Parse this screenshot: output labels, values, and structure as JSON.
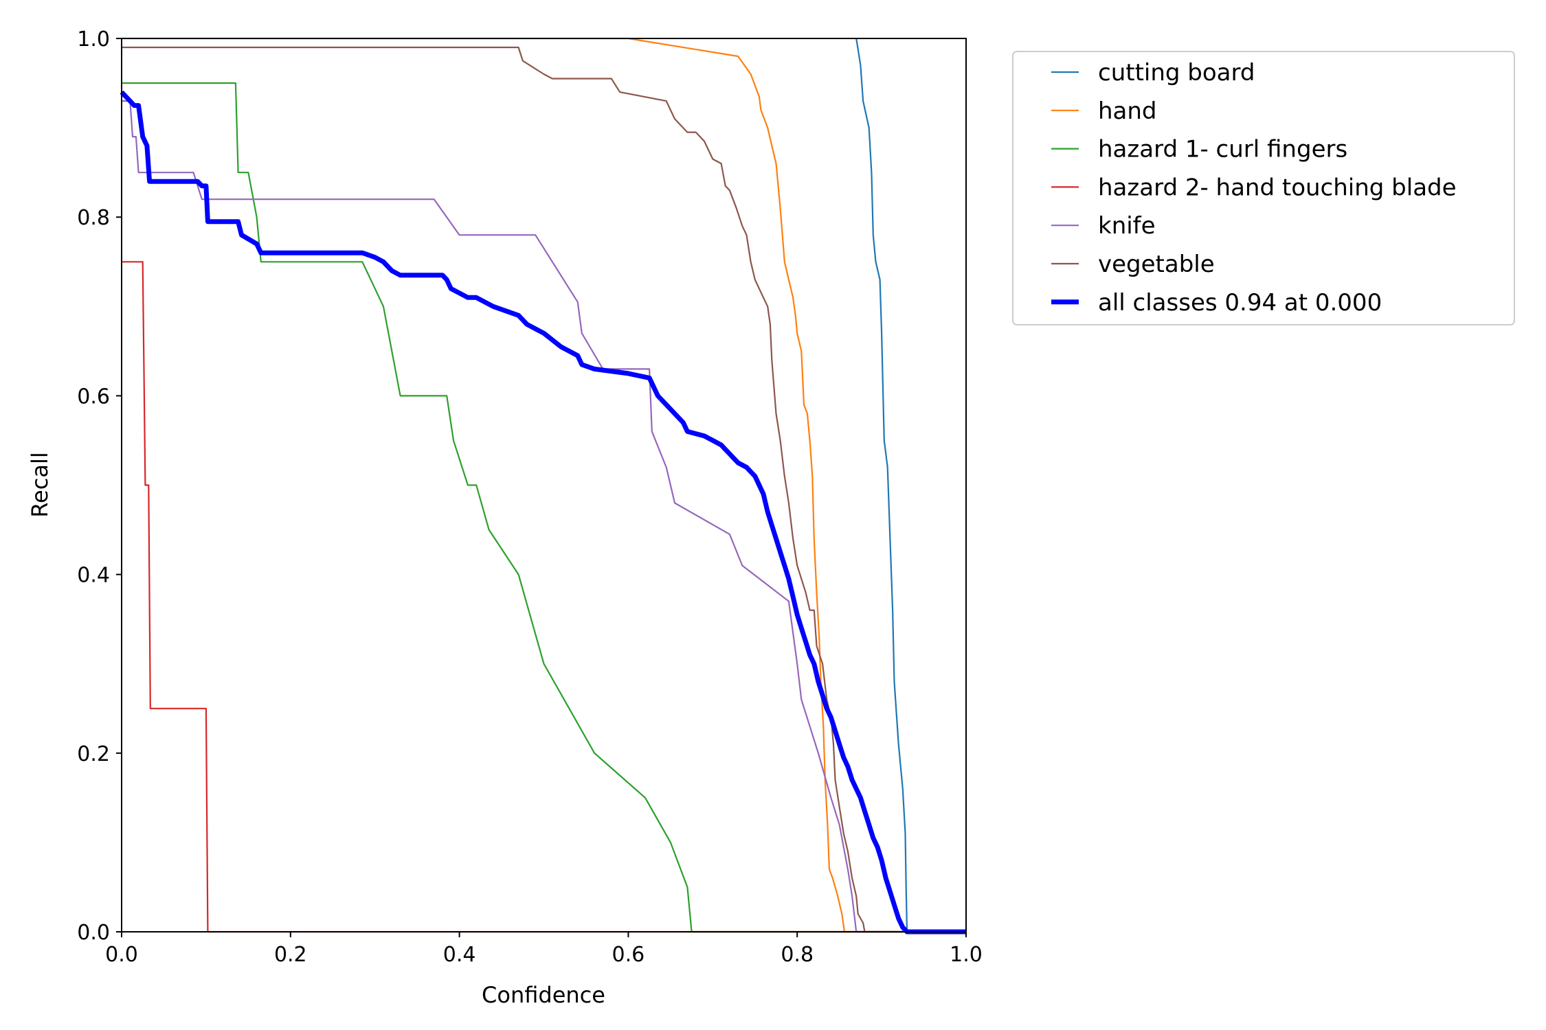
{
  "chart_data": {
    "type": "line",
    "title": "",
    "xlabel": "Confidence",
    "ylabel": "Recall",
    "xlim": [
      0,
      1
    ],
    "ylim": [
      0,
      1
    ],
    "xticks": [
      "0.0",
      "0.2",
      "0.4",
      "0.6",
      "0.8",
      "1.0"
    ],
    "yticks": [
      "0.0",
      "0.2",
      "0.4",
      "0.6",
      "0.8",
      "1.0"
    ],
    "legend_position": "outside-top-right",
    "series": [
      {
        "name": "cutting board",
        "color": "#1f77b4",
        "width": "thin",
        "points": [
          [
            0.87,
            1.0
          ],
          [
            0.875,
            0.97
          ],
          [
            0.878,
            0.93
          ],
          [
            0.885,
            0.9
          ],
          [
            0.888,
            0.85
          ],
          [
            0.89,
            0.78
          ],
          [
            0.893,
            0.75
          ],
          [
            0.898,
            0.73
          ],
          [
            0.9,
            0.67
          ],
          [
            0.903,
            0.55
          ],
          [
            0.907,
            0.52
          ],
          [
            0.91,
            0.44
          ],
          [
            0.913,
            0.36
          ],
          [
            0.915,
            0.28
          ],
          [
            0.92,
            0.21
          ],
          [
            0.925,
            0.16
          ],
          [
            0.928,
            0.11
          ],
          [
            0.929,
            0.05
          ],
          [
            0.93,
            0.0
          ],
          [
            1.0,
            0.0
          ]
        ]
      },
      {
        "name": "hand",
        "color": "#ff7f0e",
        "width": "thin",
        "points": [
          [
            0.0,
            1.0
          ],
          [
            0.6,
            1.0
          ],
          [
            0.73,
            0.98
          ],
          [
            0.745,
            0.96
          ],
          [
            0.755,
            0.935
          ],
          [
            0.757,
            0.92
          ],
          [
            0.765,
            0.9
          ],
          [
            0.775,
            0.86
          ],
          [
            0.78,
            0.81
          ],
          [
            0.785,
            0.75
          ],
          [
            0.79,
            0.73
          ],
          [
            0.795,
            0.71
          ],
          [
            0.798,
            0.69
          ],
          [
            0.8,
            0.67
          ],
          [
            0.805,
            0.65
          ],
          [
            0.808,
            0.59
          ],
          [
            0.812,
            0.58
          ],
          [
            0.815,
            0.55
          ],
          [
            0.818,
            0.51
          ],
          [
            0.82,
            0.44
          ],
          [
            0.823,
            0.38
          ],
          [
            0.826,
            0.33
          ],
          [
            0.828,
            0.28
          ],
          [
            0.831,
            0.23
          ],
          [
            0.833,
            0.17
          ],
          [
            0.836,
            0.12
          ],
          [
            0.838,
            0.07
          ],
          [
            0.842,
            0.06
          ],
          [
            0.848,
            0.04
          ],
          [
            0.853,
            0.02
          ],
          [
            0.856,
            0.0
          ],
          [
            1.0,
            0.0
          ]
        ]
      },
      {
        "name": "hazard 1- curl fingers",
        "color": "#2ca02c",
        "width": "thin",
        "points": [
          [
            0.0,
            0.95
          ],
          [
            0.135,
            0.95
          ],
          [
            0.138,
            0.85
          ],
          [
            0.15,
            0.85
          ],
          [
            0.16,
            0.8
          ],
          [
            0.165,
            0.75
          ],
          [
            0.285,
            0.75
          ],
          [
            0.31,
            0.7
          ],
          [
            0.32,
            0.65
          ],
          [
            0.33,
            0.6
          ],
          [
            0.385,
            0.6
          ],
          [
            0.393,
            0.55
          ],
          [
            0.41,
            0.5
          ],
          [
            0.42,
            0.5
          ],
          [
            0.435,
            0.45
          ],
          [
            0.47,
            0.4
          ],
          [
            0.5,
            0.3
          ],
          [
            0.53,
            0.25
          ],
          [
            0.56,
            0.2
          ],
          [
            0.62,
            0.15
          ],
          [
            0.65,
            0.1
          ],
          [
            0.67,
            0.05
          ],
          [
            0.675,
            0.0
          ],
          [
            1.0,
            0.0
          ]
        ]
      },
      {
        "name": "hazard 2- hand touching blade",
        "color": "#d62728",
        "width": "thin",
        "points": [
          [
            0.0,
            0.75
          ],
          [
            0.025,
            0.75
          ],
          [
            0.028,
            0.5
          ],
          [
            0.032,
            0.5
          ],
          [
            0.034,
            0.25
          ],
          [
            0.1,
            0.25
          ],
          [
            0.102,
            0.0
          ],
          [
            1.0,
            0.0
          ]
        ]
      },
      {
        "name": "knife",
        "color": "#9467bd",
        "width": "thin",
        "points": [
          [
            0.0,
            0.93
          ],
          [
            0.01,
            0.93
          ],
          [
            0.013,
            0.89
          ],
          [
            0.017,
            0.89
          ],
          [
            0.02,
            0.85
          ],
          [
            0.085,
            0.85
          ],
          [
            0.095,
            0.82
          ],
          [
            0.37,
            0.82
          ],
          [
            0.4,
            0.78
          ],
          [
            0.49,
            0.78
          ],
          [
            0.54,
            0.705
          ],
          [
            0.545,
            0.67
          ],
          [
            0.57,
            0.63
          ],
          [
            0.625,
            0.63
          ],
          [
            0.628,
            0.56
          ],
          [
            0.645,
            0.52
          ],
          [
            0.655,
            0.48
          ],
          [
            0.72,
            0.445
          ],
          [
            0.735,
            0.41
          ],
          [
            0.79,
            0.37
          ],
          [
            0.8,
            0.3
          ],
          [
            0.805,
            0.26
          ],
          [
            0.825,
            0.2
          ],
          [
            0.84,
            0.15
          ],
          [
            0.85,
            0.12
          ],
          [
            0.86,
            0.07
          ],
          [
            0.865,
            0.04
          ],
          [
            0.87,
            0.0
          ],
          [
            1.0,
            0.0
          ]
        ]
      },
      {
        "name": "vegetable",
        "color": "#8c564b",
        "width": "thin",
        "points": [
          [
            0.0,
            0.99
          ],
          [
            0.47,
            0.99
          ],
          [
            0.475,
            0.975
          ],
          [
            0.5,
            0.96
          ],
          [
            0.51,
            0.955
          ],
          [
            0.58,
            0.955
          ],
          [
            0.59,
            0.94
          ],
          [
            0.645,
            0.93
          ],
          [
            0.655,
            0.91
          ],
          [
            0.66,
            0.905
          ],
          [
            0.67,
            0.895
          ],
          [
            0.68,
            0.895
          ],
          [
            0.69,
            0.885
          ],
          [
            0.7,
            0.865
          ],
          [
            0.71,
            0.86
          ],
          [
            0.715,
            0.835
          ],
          [
            0.72,
            0.83
          ],
          [
            0.728,
            0.81
          ],
          [
            0.735,
            0.79
          ],
          [
            0.74,
            0.78
          ],
          [
            0.745,
            0.75
          ],
          [
            0.75,
            0.73
          ],
          [
            0.755,
            0.72
          ],
          [
            0.76,
            0.71
          ],
          [
            0.765,
            0.7
          ],
          [
            0.768,
            0.68
          ],
          [
            0.77,
            0.64
          ],
          [
            0.775,
            0.58
          ],
          [
            0.78,
            0.55
          ],
          [
            0.785,
            0.51
          ],
          [
            0.79,
            0.48
          ],
          [
            0.795,
            0.44
          ],
          [
            0.8,
            0.41
          ],
          [
            0.81,
            0.38
          ],
          [
            0.815,
            0.36
          ],
          [
            0.82,
            0.36
          ],
          [
            0.823,
            0.32
          ],
          [
            0.83,
            0.3
          ],
          [
            0.835,
            0.26
          ],
          [
            0.84,
            0.24
          ],
          [
            0.843,
            0.21
          ],
          [
            0.845,
            0.17
          ],
          [
            0.85,
            0.14
          ],
          [
            0.855,
            0.11
          ],
          [
            0.86,
            0.09
          ],
          [
            0.865,
            0.06
          ],
          [
            0.87,
            0.04
          ],
          [
            0.872,
            0.02
          ],
          [
            0.878,
            0.01
          ],
          [
            0.88,
            0.0
          ],
          [
            1.0,
            0.0
          ]
        ]
      },
      {
        "name": "all classes 0.94 at 0.000",
        "color": "#0000ff",
        "width": "thick",
        "points": [
          [
            0.0,
            0.94
          ],
          [
            0.01,
            0.93
          ],
          [
            0.015,
            0.925
          ],
          [
            0.02,
            0.925
          ],
          [
            0.025,
            0.89
          ],
          [
            0.03,
            0.88
          ],
          [
            0.033,
            0.84
          ],
          [
            0.09,
            0.84
          ],
          [
            0.095,
            0.835
          ],
          [
            0.1,
            0.835
          ],
          [
            0.102,
            0.795
          ],
          [
            0.138,
            0.795
          ],
          [
            0.142,
            0.78
          ],
          [
            0.16,
            0.77
          ],
          [
            0.165,
            0.76
          ],
          [
            0.285,
            0.76
          ],
          [
            0.3,
            0.755
          ],
          [
            0.31,
            0.75
          ],
          [
            0.32,
            0.74
          ],
          [
            0.33,
            0.735
          ],
          [
            0.38,
            0.735
          ],
          [
            0.385,
            0.73
          ],
          [
            0.39,
            0.72
          ],
          [
            0.4,
            0.715
          ],
          [
            0.41,
            0.71
          ],
          [
            0.42,
            0.71
          ],
          [
            0.43,
            0.705
          ],
          [
            0.44,
            0.7
          ],
          [
            0.47,
            0.69
          ],
          [
            0.48,
            0.68
          ],
          [
            0.5,
            0.67
          ],
          [
            0.52,
            0.655
          ],
          [
            0.54,
            0.645
          ],
          [
            0.545,
            0.635
          ],
          [
            0.56,
            0.63
          ],
          [
            0.6,
            0.625
          ],
          [
            0.625,
            0.62
          ],
          [
            0.635,
            0.6
          ],
          [
            0.645,
            0.59
          ],
          [
            0.655,
            0.58
          ],
          [
            0.665,
            0.57
          ],
          [
            0.67,
            0.56
          ],
          [
            0.69,
            0.555
          ],
          [
            0.7,
            0.55
          ],
          [
            0.71,
            0.545
          ],
          [
            0.715,
            0.54
          ],
          [
            0.72,
            0.535
          ],
          [
            0.725,
            0.53
          ],
          [
            0.73,
            0.525
          ],
          [
            0.74,
            0.52
          ],
          [
            0.75,
            0.51
          ],
          [
            0.755,
            0.5
          ],
          [
            0.76,
            0.49
          ],
          [
            0.765,
            0.47
          ],
          [
            0.77,
            0.455
          ],
          [
            0.775,
            0.44
          ],
          [
            0.78,
            0.425
          ],
          [
            0.785,
            0.41
          ],
          [
            0.79,
            0.395
          ],
          [
            0.795,
            0.375
          ],
          [
            0.8,
            0.355
          ],
          [
            0.805,
            0.34
          ],
          [
            0.81,
            0.325
          ],
          [
            0.815,
            0.31
          ],
          [
            0.82,
            0.3
          ],
          [
            0.825,
            0.28
          ],
          [
            0.83,
            0.265
          ],
          [
            0.835,
            0.25
          ],
          [
            0.84,
            0.24
          ],
          [
            0.845,
            0.225
          ],
          [
            0.85,
            0.21
          ],
          [
            0.855,
            0.195
          ],
          [
            0.86,
            0.185
          ],
          [
            0.865,
            0.17
          ],
          [
            0.87,
            0.16
          ],
          [
            0.875,
            0.15
          ],
          [
            0.88,
            0.135
          ],
          [
            0.885,
            0.12
          ],
          [
            0.89,
            0.105
          ],
          [
            0.895,
            0.095
          ],
          [
            0.9,
            0.08
          ],
          [
            0.905,
            0.06
          ],
          [
            0.91,
            0.045
          ],
          [
            0.915,
            0.03
          ],
          [
            0.92,
            0.015
          ],
          [
            0.925,
            0.005
          ],
          [
            0.93,
            0.0
          ],
          [
            1.0,
            0.0
          ]
        ]
      }
    ]
  }
}
